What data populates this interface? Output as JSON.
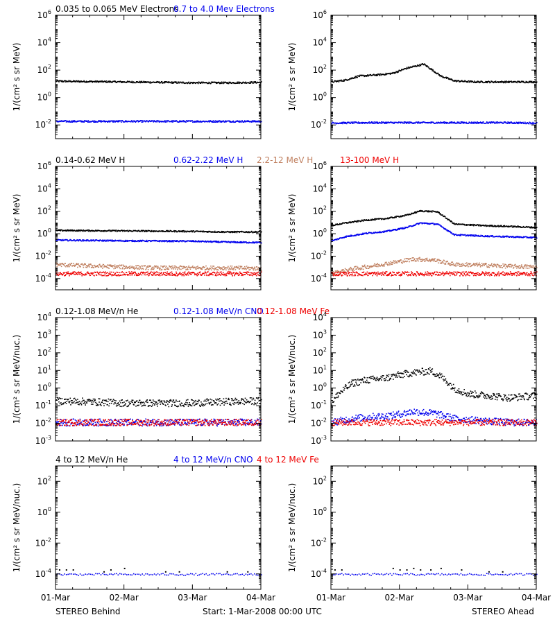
{
  "colors": {
    "black": "#000000",
    "blue": "#0000ee",
    "tan": "#c08060",
    "red": "#ee0000"
  },
  "rows": [
    {
      "headers": [
        {
          "text": "0.035 to 0.065 MeV Electrons",
          "color": "black"
        },
        {
          "text": "0.7 to 4.0 Mev Electrons",
          "color": "blue"
        }
      ],
      "ylabel": "1/(cm² s sr MeV)"
    },
    {
      "headers": [
        {
          "text": "0.14-0.62 MeV H",
          "color": "black"
        },
        {
          "text": "0.62-2.22 MeV H",
          "color": "blue"
        },
        {
          "text": "2.2-12 MeV H",
          "color": "tan"
        },
        {
          "text": "13-100 MeV H",
          "color": "red"
        }
      ],
      "ylabel": "1/(cm² s sr MeV)"
    },
    {
      "headers": [
        {
          "text": "0.12-1.08 MeV/n He",
          "color": "black"
        },
        {
          "text": "0.12-1.08 MeV/n CNO",
          "color": "blue"
        },
        {
          "text": "0.12-1.08 MeV Fe",
          "color": "red"
        }
      ],
      "ylabel": "1/(cm² s sr MeV/nuc.)"
    },
    {
      "headers": [
        {
          "text": "4 to 12 MeV/n He",
          "color": "black"
        },
        {
          "text": "4 to 12 MeV/n CNO",
          "color": "blue"
        },
        {
          "text": "4 to 12 MeV Fe",
          "color": "red"
        }
      ],
      "ylabel": "1/(cm² s sr MeV/nuc.)"
    }
  ],
  "footer": {
    "left": "STEREO Behind",
    "center": "Start:  1-Mar-2008 00:00 UTC",
    "right": "STEREO Ahead"
  },
  "chart_data": [
    {
      "id": "r0-behind",
      "type": "scatter",
      "log_y": true,
      "row": 0,
      "col": 0,
      "xlim": [
        0,
        3
      ],
      "ylim_exp": [
        -3,
        6
      ],
      "yticks": [
        {
          "base": "10",
          "exp": "-2"
        },
        {
          "base": "10",
          "exp": "0"
        },
        {
          "base": "10",
          "exp": "2"
        },
        {
          "base": "10",
          "exp": "4"
        },
        {
          "base": "10",
          "exp": "6"
        }
      ],
      "xticks": [
        "01-Mar",
        "02-Mar",
        "03-Mar",
        "04-Mar"
      ],
      "series": [
        {
          "color": "black",
          "x": [
            0,
            0.5,
            1,
            1.5,
            2,
            2.5,
            3
          ],
          "y": [
            17,
            16,
            15,
            14,
            13,
            13,
            14
          ]
        },
        {
          "color": "blue",
          "x": [
            0,
            0.5,
            1,
            1.5,
            2,
            2.5,
            3
          ],
          "y": [
            0.02,
            0.02,
            0.02,
            0.02,
            0.02,
            0.02,
            0.02
          ]
        }
      ]
    },
    {
      "id": "r0-ahead",
      "type": "scatter",
      "log_y": true,
      "row": 0,
      "col": 1,
      "xlim": [
        0,
        3
      ],
      "ylim_exp": [
        -3,
        6
      ],
      "yticks": [
        {
          "base": "10",
          "exp": "-2"
        },
        {
          "base": "10",
          "exp": "0"
        },
        {
          "base": "10",
          "exp": "2"
        },
        {
          "base": "10",
          "exp": "4"
        },
        {
          "base": "10",
          "exp": "6"
        }
      ],
      "xticks": [
        "01-Mar",
        "02-Mar",
        "03-Mar",
        "04-Mar"
      ],
      "series": [
        {
          "color": "black",
          "x": [
            0,
            0.2,
            0.4,
            0.7,
            0.9,
            1.1,
            1.35,
            1.6,
            1.8,
            2.1,
            2.5,
            3
          ],
          "y": [
            15,
            20,
            40,
            50,
            65,
            150,
            300,
            40,
            18,
            15,
            15,
            15
          ]
        },
        {
          "color": "blue",
          "x": [
            0,
            0.5,
            1,
            1.5,
            2,
            2.5,
            3
          ],
          "y": [
            0.015,
            0.016,
            0.016,
            0.016,
            0.016,
            0.016,
            0.015
          ]
        }
      ]
    },
    {
      "id": "r1-behind",
      "type": "scatter",
      "log_y": true,
      "row": 1,
      "col": 0,
      "xlim": [
        0,
        3
      ],
      "ylim_exp": [
        -5,
        6
      ],
      "yticks": [
        {
          "base": "10",
          "exp": "-4"
        },
        {
          "base": "10",
          "exp": "-2"
        },
        {
          "base": "10",
          "exp": "0"
        },
        {
          "base": "10",
          "exp": "2"
        },
        {
          "base": "10",
          "exp": "4"
        },
        {
          "base": "10",
          "exp": "6"
        }
      ],
      "xticks": [
        "01-Mar",
        "02-Mar",
        "03-Mar",
        "04-Mar"
      ],
      "series": [
        {
          "color": "black",
          "x": [
            0,
            0.5,
            1,
            1.5,
            2,
            2.5,
            3
          ],
          "y": [
            2.2,
            2.1,
            2.0,
            1.9,
            1.8,
            1.6,
            1.6
          ]
        },
        {
          "color": "blue",
          "x": [
            0,
            0.5,
            1,
            1.5,
            2,
            2.5,
            3
          ],
          "y": [
            0.3,
            0.28,
            0.26,
            0.25,
            0.24,
            0.2,
            0.18
          ]
        },
        {
          "color": "tan",
          "x": [
            0,
            0.5,
            1,
            1.5,
            2,
            2.5,
            3
          ],
          "y": [
            0.002,
            0.0015,
            0.0012,
            0.001,
            0.001,
            0.001,
            0.0009
          ]
        },
        {
          "color": "red",
          "x": [
            0,
            0.5,
            1,
            1.5,
            2,
            2.5,
            3
          ],
          "y": [
            0.0003,
            0.0003,
            0.0003,
            0.0003,
            0.0003,
            0.0003,
            0.0003
          ]
        }
      ]
    },
    {
      "id": "r1-ahead",
      "type": "scatter",
      "log_y": true,
      "row": 1,
      "col": 1,
      "xlim": [
        0,
        3
      ],
      "ylim_exp": [
        -5,
        6
      ],
      "yticks": [
        {
          "base": "10",
          "exp": "-4"
        },
        {
          "base": "10",
          "exp": "-2"
        },
        {
          "base": "10",
          "exp": "0"
        },
        {
          "base": "10",
          "exp": "2"
        },
        {
          "base": "10",
          "exp": "4"
        },
        {
          "base": "10",
          "exp": "6"
        }
      ],
      "xticks": [
        "01-Mar",
        "02-Mar",
        "03-Mar",
        "04-Mar"
      ],
      "series": [
        {
          "color": "black",
          "x": [
            0,
            0.2,
            0.5,
            0.8,
            1.1,
            1.3,
            1.55,
            1.8,
            2.2,
            2.6,
            3
          ],
          "y": [
            6,
            10,
            18,
            25,
            50,
            120,
            100,
            8,
            6,
            5,
            4
          ]
        },
        {
          "color": "blue",
          "x": [
            0,
            0.2,
            0.5,
            0.8,
            1.1,
            1.3,
            1.55,
            1.8,
            2.2,
            2.6,
            3
          ],
          "y": [
            0.25,
            0.6,
            1.2,
            1.8,
            4,
            10,
            8,
            0.9,
            0.7,
            0.6,
            0.5
          ]
        },
        {
          "color": "tan",
          "x": [
            0,
            0.3,
            0.6,
            0.9,
            1.2,
            1.5,
            1.8,
            2.2,
            2.6,
            3
          ],
          "y": [
            0.0003,
            0.0008,
            0.0015,
            0.003,
            0.006,
            0.005,
            0.002,
            0.0018,
            0.0014,
            0.0012
          ]
        },
        {
          "color": "red",
          "x": [
            0,
            0.5,
            1,
            1.5,
            2,
            2.5,
            3
          ],
          "y": [
            0.0003,
            0.0003,
            0.0003,
            0.0003,
            0.0003,
            0.0003,
            0.0003
          ]
        }
      ]
    },
    {
      "id": "r2-behind",
      "type": "scatter",
      "log_y": true,
      "row": 2,
      "col": 0,
      "xlim": [
        0,
        3
      ],
      "ylim_exp": [
        -3,
        4
      ],
      "yticks": [
        {
          "base": "10",
          "exp": "-3"
        },
        {
          "base": "10",
          "exp": "-2"
        },
        {
          "base": "10",
          "exp": "-1"
        },
        {
          "base": "10",
          "exp": "0"
        },
        {
          "base": "10",
          "exp": "1"
        },
        {
          "base": "10",
          "exp": "2"
        },
        {
          "base": "10",
          "exp": "3"
        },
        {
          "base": "10",
          "exp": "4"
        }
      ],
      "xticks": [
        "01-Mar",
        "02-Mar",
        "03-Mar",
        "04-Mar"
      ],
      "series": [
        {
          "color": "black",
          "x": [
            0,
            0.5,
            1,
            1.5,
            2,
            2.5,
            3
          ],
          "y": [
            0.2,
            0.18,
            0.15,
            0.15,
            0.15,
            0.18,
            0.2
          ]
        },
        {
          "color": "blue",
          "x": [
            0,
            0.5,
            1,
            1.5,
            2,
            2.5,
            3
          ],
          "y": [
            0.012,
            0.012,
            0.012,
            0.012,
            0.012,
            0.012,
            0.012
          ]
        },
        {
          "color": "red",
          "x": [
            0,
            0.5,
            1,
            1.5,
            2,
            2.5,
            3
          ],
          "y": [
            0.012,
            0.012,
            0.012,
            0.012,
            0.012,
            0.012,
            0.012
          ]
        }
      ]
    },
    {
      "id": "r2-ahead",
      "type": "scatter",
      "log_y": true,
      "row": 2,
      "col": 1,
      "xlim": [
        0,
        3
      ],
      "ylim_exp": [
        -3,
        4
      ],
      "yticks": [
        {
          "base": "10",
          "exp": "-3"
        },
        {
          "base": "10",
          "exp": "-2"
        },
        {
          "base": "10",
          "exp": "-1"
        },
        {
          "base": "10",
          "exp": "0"
        },
        {
          "base": "10",
          "exp": "1"
        },
        {
          "base": "10",
          "exp": "2"
        },
        {
          "base": "10",
          "exp": "3"
        },
        {
          "base": "10",
          "exp": "4"
        }
      ],
      "xticks": [
        "01-Mar",
        "02-Mar",
        "03-Mar",
        "04-Mar"
      ],
      "series": [
        {
          "color": "black",
          "x": [
            0,
            0.1,
            0.3,
            0.5,
            0.8,
            1.0,
            1.2,
            1.45,
            1.6,
            1.8,
            2.0,
            2.3,
            2.6,
            3
          ],
          "y": [
            0.15,
            0.5,
            2,
            3,
            4,
            6,
            8,
            10,
            5,
            1,
            0.5,
            0.4,
            0.3,
            0.4
          ]
        },
        {
          "color": "blue",
          "x": [
            0,
            0.3,
            0.6,
            0.9,
            1.2,
            1.5,
            1.8,
            2.2,
            2.6,
            3
          ],
          "y": [
            0.012,
            0.02,
            0.025,
            0.03,
            0.05,
            0.04,
            0.02,
            0.015,
            0.012,
            0.012
          ]
        },
        {
          "color": "red",
          "x": [
            0,
            0.5,
            1,
            1.5,
            2,
            2.5,
            3
          ],
          "y": [
            0.012,
            0.012,
            0.012,
            0.012,
            0.012,
            0.012,
            0.012
          ]
        }
      ]
    },
    {
      "id": "r3-behind",
      "type": "scatter",
      "log_y": true,
      "row": 3,
      "col": 0,
      "xlim": [
        0,
        3
      ],
      "ylim_exp": [
        -5,
        3
      ],
      "yticks": [
        {
          "base": "10",
          "exp": "-4"
        },
        {
          "base": "10",
          "exp": "-2"
        },
        {
          "base": "10",
          "exp": "0"
        },
        {
          "base": "10",
          "exp": "2"
        }
      ],
      "xticks": [
        "01-Mar",
        "02-Mar",
        "03-Mar",
        "04-Mar"
      ],
      "series": [
        {
          "color": "black",
          "x": [
            0.05,
            0.15,
            0.25,
            0.7,
            0.8,
            1.0,
            1.6,
            1.8,
            2.5,
            2.8
          ],
          "y": [
            0.0002,
            0.0002,
            0.0002,
            0.00015,
            0.0002,
            0.00025,
            0.00015,
            0.00015,
            0.00015,
            0.00015
          ]
        },
        {
          "color": "blue",
          "x": [
            0,
            0.5,
            1,
            1.5,
            2,
            2.5,
            3
          ],
          "y": [
            0.0001,
            0.0001,
            0.0001,
            0.0001,
            0.0001,
            0.0001,
            0.0001
          ]
        }
      ]
    },
    {
      "id": "r3-ahead",
      "type": "scatter",
      "log_y": true,
      "row": 3,
      "col": 1,
      "xlim": [
        0,
        3
      ],
      "ylim_exp": [
        -5,
        3
      ],
      "yticks": [
        {
          "base": "10",
          "exp": "-4"
        },
        {
          "base": "10",
          "exp": "-2"
        },
        {
          "base": "10",
          "exp": "0"
        },
        {
          "base": "10",
          "exp": "2"
        }
      ],
      "xticks": [
        "01-Mar",
        "02-Mar",
        "03-Mar",
        "04-Mar"
      ],
      "series": [
        {
          "color": "black",
          "x": [
            0.05,
            0.15,
            0.9,
            1.0,
            1.1,
            1.2,
            1.3,
            1.45,
            1.6,
            1.9,
            2.3,
            2.5
          ],
          "y": [
            0.0002,
            0.0002,
            0.00025,
            0.0002,
            0.0002,
            0.00025,
            0.0002,
            0.0002,
            0.00025,
            0.0002,
            0.00015,
            0.00015
          ]
        },
        {
          "color": "blue",
          "x": [
            0,
            0.5,
            1,
            1.5,
            2,
            2.5,
            3
          ],
          "y": [
            0.0001,
            0.0001,
            0.0001,
            0.0001,
            0.0001,
            0.0001,
            0.0001
          ]
        }
      ]
    }
  ]
}
